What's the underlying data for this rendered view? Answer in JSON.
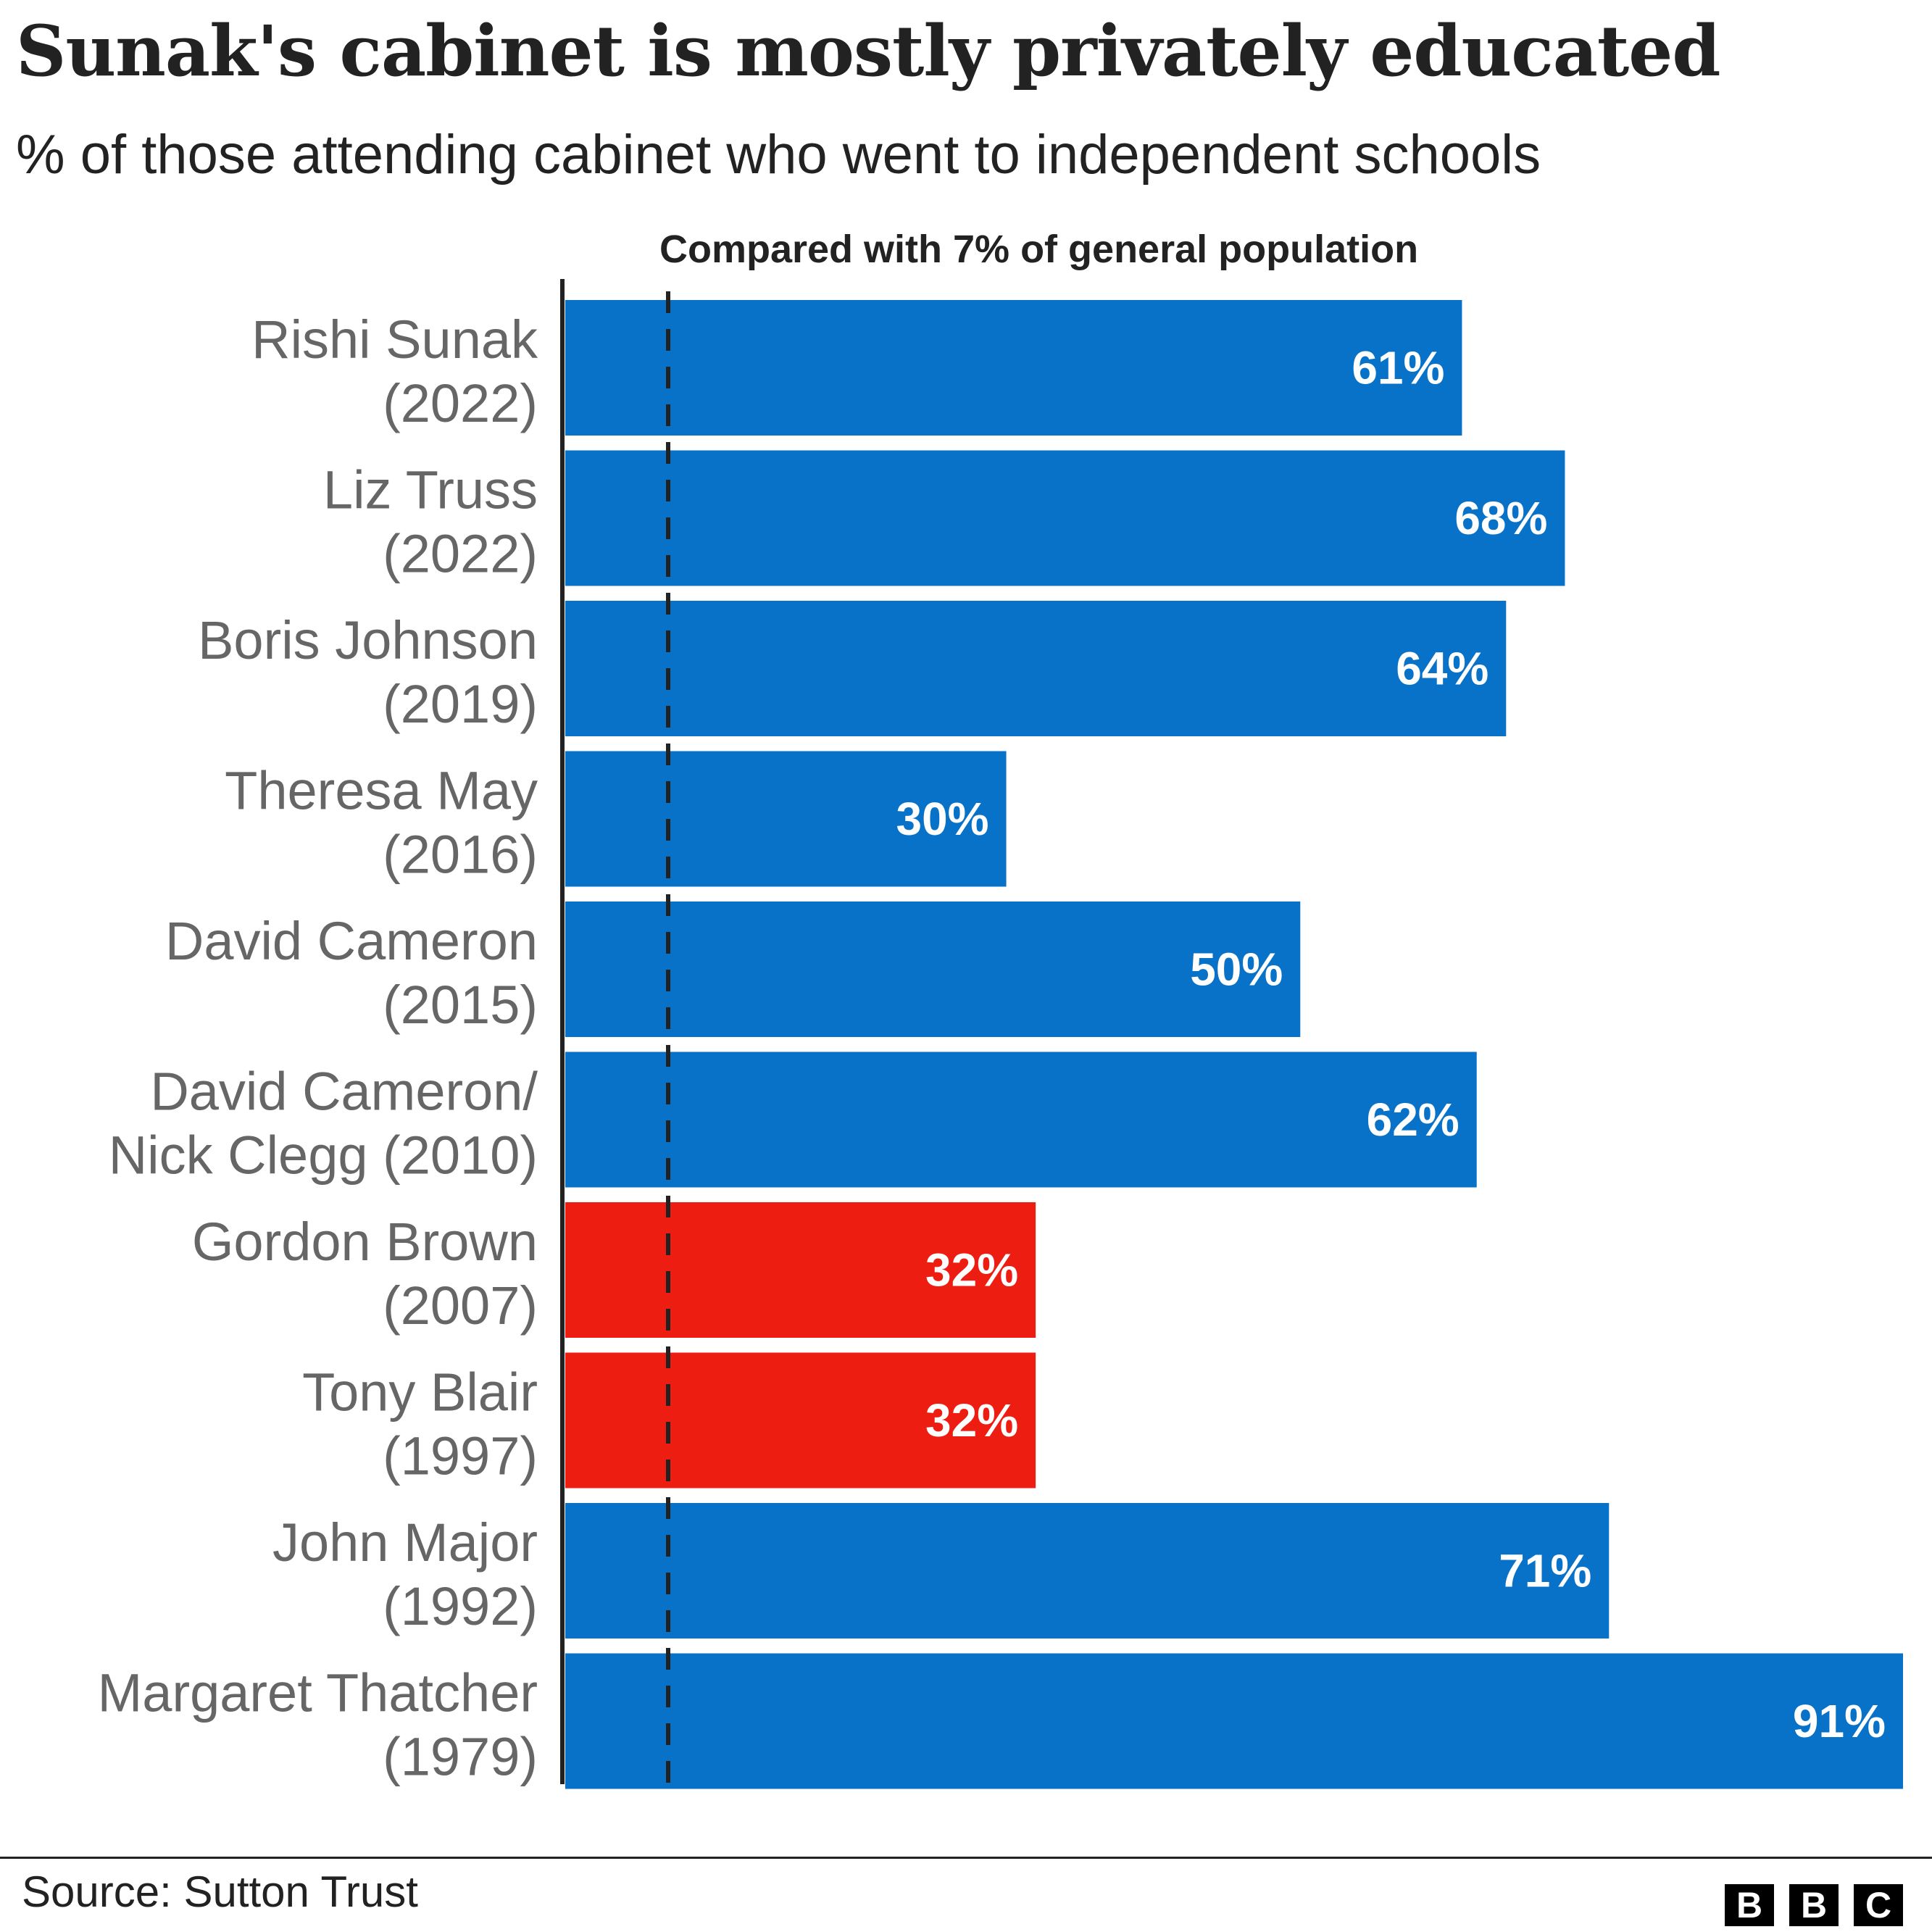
{
  "header": {
    "title": "Sunak's cabinet is mostly privately educated",
    "subtitle": "% of those attending cabinet who went to independent schools"
  },
  "chart_data": {
    "type": "bar",
    "orientation": "horizontal",
    "title": "Sunak's cabinet is mostly privately educated",
    "subtitle": "% of those attending cabinet who went to independent schools",
    "unit": "%",
    "xlim": [
      0,
      91
    ],
    "grid": false,
    "categories": [
      [
        "Rishi Sunak",
        "(2022)"
      ],
      [
        "Liz Truss",
        "(2022)"
      ],
      [
        "Boris Johnson",
        "(2019)"
      ],
      [
        "Theresa May",
        "(2016)"
      ],
      [
        "David Cameron",
        "(2015)"
      ],
      [
        "David Cameron/",
        "Nick Clegg (2010)"
      ],
      [
        "Gordon Brown",
        "(2007)"
      ],
      [
        "Tony Blair",
        "(1997)"
      ],
      [
        "John Major",
        "(1992)"
      ],
      [
        "Margaret Thatcher",
        "(1979)"
      ]
    ],
    "values": [
      61,
      68,
      64,
      30,
      50,
      62,
      32,
      32,
      71,
      91
    ],
    "labels": [
      "61%",
      "68%",
      "64%",
      "30%",
      "50%",
      "62%",
      "32%",
      "32%",
      "71%",
      "91%"
    ],
    "party_colors": [
      "#0872c9",
      "#0872c9",
      "#0872c9",
      "#0872c9",
      "#0872c9",
      "#0872c9",
      "#ee1d11",
      "#ee1d11",
      "#0872c9",
      "#0872c9"
    ],
    "reference_line": {
      "value": 7,
      "label": "Compared with 7% of general population"
    }
  },
  "footer": {
    "source": "Source: Sutton Trust",
    "logo_letters": [
      "B",
      "B",
      "C"
    ]
  }
}
